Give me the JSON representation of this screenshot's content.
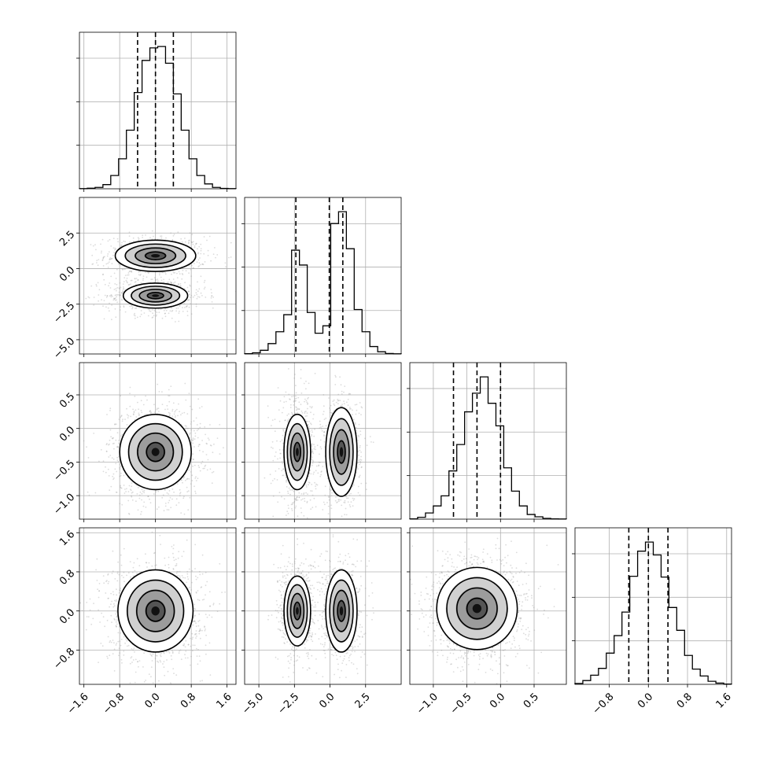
{
  "chart_data": {
    "type": "corner",
    "n_params": 4,
    "grid": true,
    "quantile_lines": "dashed",
    "ranges": [
      [
        -1.7,
        1.8
      ],
      [
        -6.0,
        5.0
      ],
      [
        -1.35,
        0.98
      ],
      [
        -1.5,
        1.7
      ]
    ],
    "tick_labels": [
      [
        "-1.6",
        "-0.8",
        "0.0",
        "0.8",
        "1.6"
      ],
      [
        "-5.0",
        "-2.5",
        "0.0",
        "2.5"
      ],
      [
        "-1.0",
        "-0.5",
        "0.0",
        "0.5"
      ],
      [
        "-0.8",
        "0.0",
        "0.8",
        "1.6"
      ]
    ],
    "ticks": [
      [
        -1.6,
        -0.8,
        0.0,
        0.8,
        1.6
      ],
      [
        -5.0,
        -2.5,
        0.0,
        2.5
      ],
      [
        -1.0,
        -0.5,
        0.0,
        0.5
      ],
      [
        -0.8,
        0.0,
        0.8,
        1.6
      ]
    ],
    "histograms": [
      {
        "bins": [
          -1.7,
          -1.525,
          -1.35,
          -1.175,
          -1.0,
          -0.825,
          -0.65,
          -0.475,
          -0.3,
          -0.125,
          0.05,
          0.225,
          0.4,
          0.575,
          0.75,
          0.925,
          1.1,
          1.275,
          1.45,
          1.625,
          1.8
        ],
        "counts": [
          1,
          4,
          10,
          30,
          95,
          215,
          420,
          690,
          920,
          1010,
          1020,
          900,
          680,
          420,
          215,
          95,
          35,
          10,
          3,
          1
        ],
        "quantiles": [
          -0.4,
          0.0,
          0.4
        ]
      },
      {
        "bins": [
          -6.0,
          -5.45,
          -4.9,
          -4.35,
          -3.8,
          -3.25,
          -2.7,
          -2.15,
          -1.6,
          -1.05,
          -0.5,
          0.05,
          0.6,
          1.15,
          1.7,
          2.25,
          2.8,
          3.35,
          3.9,
          4.45,
          5.0
        ],
        "counts": [
          2,
          8,
          25,
          70,
          150,
          265,
          700,
          600,
          280,
          140,
          190,
          880,
          960,
          710,
          300,
          150,
          50,
          15,
          3,
          1
        ],
        "quantiles": [
          -2.4,
          -0.05,
          0.9
        ]
      },
      {
        "bins": [
          -1.35,
          -1.2335,
          -1.117,
          -1.0005,
          -0.884,
          -0.7675,
          -0.651,
          -0.5345,
          -0.418,
          -0.3015,
          -0.185,
          -0.0685,
          0.048,
          0.1645,
          0.281,
          0.3975,
          0.514,
          0.6305,
          0.747,
          0.8635,
          0.98
        ],
        "counts": [
          2,
          12,
          40,
          85,
          150,
          310,
          480,
          690,
          810,
          915,
          745,
          600,
          330,
          180,
          85,
          30,
          15,
          5,
          2,
          1
        ],
        "quantiles": [
          -0.7,
          -0.35,
          0.0
        ]
      },
      {
        "bins": [
          -1.5,
          -1.34,
          -1.18,
          -1.02,
          -0.86,
          -0.7,
          -0.54,
          -0.38,
          -0.22,
          -0.06,
          0.1,
          0.26,
          0.42,
          0.58,
          0.74,
          0.9,
          1.06,
          1.22,
          1.38,
          1.54,
          1.7
        ],
        "counts": [
          6,
          25,
          60,
          105,
          205,
          320,
          475,
          710,
          875,
          935,
          850,
          705,
          505,
          355,
          190,
          100,
          55,
          20,
          8,
          2
        ],
        "quantiles": [
          -0.4,
          0.0,
          0.4
        ]
      }
    ],
    "panels_2d": [
      {
        "x_param": 0,
        "y_param": 1,
        "blobs": [
          {
            "cx": 0.0,
            "cy": 0.9,
            "sx": 0.45,
            "sy": 0.55,
            "w": 1.0
          },
          {
            "cx": 0.0,
            "cy": -1.9,
            "sx": 0.45,
            "sy": 0.55,
            "w": 0.8
          }
        ]
      },
      {
        "x_param": 0,
        "y_param": 2,
        "blobs": [
          {
            "cx": 0.0,
            "cy": -0.35,
            "sx": 0.4,
            "sy": 0.28,
            "w": 1.0
          }
        ]
      },
      {
        "x_param": 1,
        "y_param": 2,
        "blobs": [
          {
            "cx": -2.3,
            "cy": -0.35,
            "sx": 0.55,
            "sy": 0.33,
            "w": 0.85
          },
          {
            "cx": 0.8,
            "cy": -0.35,
            "sx": 0.55,
            "sy": 0.33,
            "w": 1.0
          }
        ]
      },
      {
        "x_param": 0,
        "y_param": 3,
        "blobs": [
          {
            "cx": 0.0,
            "cy": 0.0,
            "sx": 0.42,
            "sy": 0.42,
            "w": 1.0
          }
        ]
      },
      {
        "x_param": 1,
        "y_param": 3,
        "blobs": [
          {
            "cx": -2.3,
            "cy": 0.0,
            "sx": 0.55,
            "sy": 0.42,
            "w": 0.85
          },
          {
            "cx": 0.8,
            "cy": 0.0,
            "sx": 0.55,
            "sy": 0.42,
            "w": 1.0
          }
        ]
      },
      {
        "x_param": 2,
        "y_param": 3,
        "blobs": [
          {
            "cx": -0.35,
            "cy": 0.05,
            "sx": 0.3,
            "sy": 0.42,
            "w": 1.0
          }
        ]
      }
    ],
    "title": "",
    "xlabel": "",
    "ylabel": ""
  }
}
